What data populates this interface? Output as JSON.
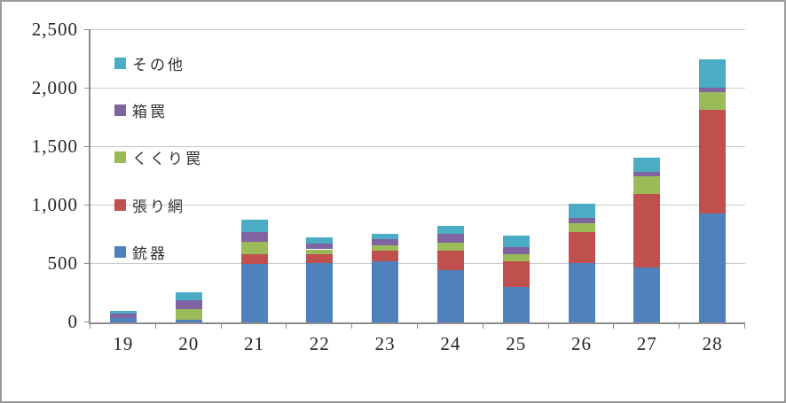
{
  "chart_data": {
    "type": "bar",
    "stacked": true,
    "title": "",
    "xlabel": "",
    "ylabel": "",
    "categories": [
      "19",
      "20",
      "21",
      "22",
      "23",
      "24",
      "25",
      "26",
      "27",
      "28"
    ],
    "series": [
      {
        "name": "銃器",
        "color": "#4F81BD",
        "values": [
          35,
          20,
          500,
          505,
          520,
          445,
          305,
          510,
          470,
          930
        ]
      },
      {
        "name": "張り網",
        "color": "#C0504D",
        "values": [
          0,
          0,
          85,
          75,
          95,
          165,
          220,
          265,
          630,
          890
        ]
      },
      {
        "name": "くくり罠",
        "color": "#9BBB59",
        "values": [
          0,
          90,
          105,
          45,
          45,
          75,
          60,
          70,
          150,
          150
        ]
      },
      {
        "name": "箱罠",
        "color": "#8064A2",
        "values": [
          40,
          80,
          80,
          50,
          50,
          70,
          60,
          50,
          40,
          40
        ]
      },
      {
        "name": "その他",
        "color": "#4BACC6",
        "values": [
          25,
          70,
          110,
          50,
          45,
          70,
          100,
          120,
          120,
          240
        ]
      }
    ],
    "totals": [
      100,
      260,
      880,
      725,
      755,
      825,
      745,
      1015,
      1410,
      2250
    ],
    "legend_order_top_to_bottom": [
      "その他",
      "箱罠",
      "くくり罠",
      "張り網",
      "銃器"
    ],
    "legend_position": "inside-top-left",
    "grid": true,
    "ylim": [
      0,
      2500
    ],
    "ytick_interval": 500,
    "ytick_labels": [
      "0",
      "500",
      "1,000",
      "1,500",
      "2,000",
      "2,500"
    ]
  },
  "colors": {
    "background": "#FFFFFF",
    "gridline": "#C9C9C9",
    "axis": "#8C8C8C",
    "text": "#262626",
    "border": "#9A9A9A"
  }
}
